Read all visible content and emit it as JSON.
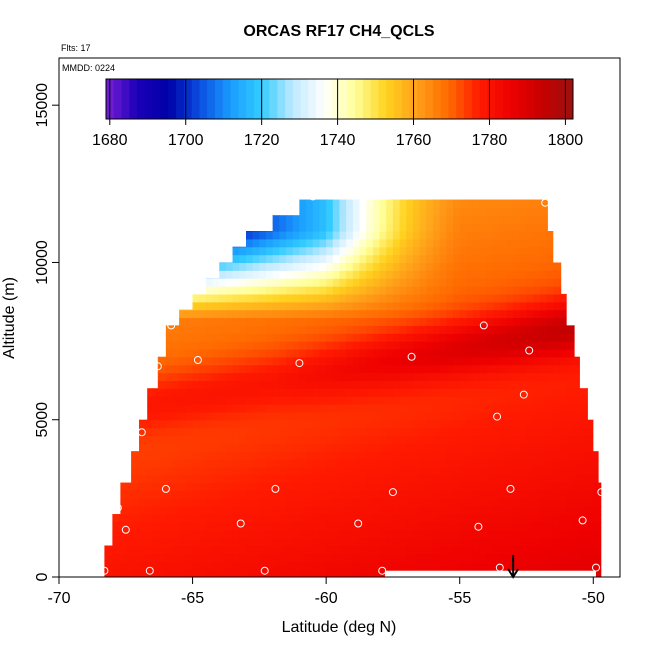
{
  "chart_data": {
    "type": "heatmap",
    "title": "ORCAS RF17 CH4_QCLS",
    "flights_label": "Flts: 17",
    "date_label": "MMDD: 0224",
    "xlabel": "Latitude (deg N)",
    "ylabel": "Altitude (m)",
    "xlim": [
      -70,
      -49
    ],
    "ylim": [
      0,
      16500
    ],
    "x_ticks": [
      -70,
      -65,
      -60,
      -55,
      -50
    ],
    "x_tick_labels": [
      "-70",
      "-65",
      "-60",
      "-55",
      "-50"
    ],
    "y_ticks": [
      0,
      5000,
      10000,
      15000
    ],
    "y_tick_labels": [
      "0",
      "5000",
      "10000",
      "15000"
    ],
    "colorbar": {
      "min": 1679,
      "max": 1802,
      "ticks": [
        1680,
        1700,
        1720,
        1740,
        1760,
        1780,
        1800
      ],
      "tick_labels": [
        "1680",
        "1700",
        "1720",
        "1740",
        "1760",
        "1780",
        "1800"
      ],
      "colors": [
        "#7a1fd6",
        "#1a00b8",
        "#0000a8",
        "#0a4de0",
        "#1a9cff",
        "#33ccff",
        "#bfe9ff",
        "#ffffff",
        "#ffff99",
        "#ffd21f",
        "#ff9f1a",
        "#ff6a00",
        "#ff1a00",
        "#ee0000",
        "#c80000",
        "#9a1010"
      ]
    },
    "field": {
      "lat_range": [
        -68.5,
        -49.7
      ],
      "alt_range": [
        0,
        12000
      ],
      "lat_step": 0.25,
      "alt_step": 250
    },
    "boundary": [
      [
        -68.3,
        0
      ],
      [
        -68.3,
        1000
      ],
      [
        -68.0,
        1000
      ],
      [
        -68.0,
        2000
      ],
      [
        -67.7,
        2000
      ],
      [
        -67.7,
        3000
      ],
      [
        -67.3,
        3000
      ],
      [
        -67.3,
        4000
      ],
      [
        -67.0,
        4000
      ],
      [
        -67.0,
        5000
      ],
      [
        -66.7,
        5000
      ],
      [
        -66.7,
        6000
      ],
      [
        -66.3,
        6000
      ],
      [
        -66.3,
        7000
      ],
      [
        -66.0,
        7000
      ],
      [
        -66.0,
        8000
      ],
      [
        -65.5,
        8000
      ],
      [
        -65.5,
        8500
      ],
      [
        -65.0,
        8500
      ],
      [
        -65.0,
        9000
      ],
      [
        -64.5,
        9000
      ],
      [
        -64.5,
        9500
      ],
      [
        -64.0,
        9500
      ],
      [
        -64.0,
        10000
      ],
      [
        -63.5,
        10000
      ],
      [
        -63.5,
        10500
      ],
      [
        -63.0,
        10500
      ],
      [
        -63.0,
        11000
      ],
      [
        -62.0,
        11000
      ],
      [
        -62.0,
        11500
      ],
      [
        -61.0,
        11500
      ],
      [
        -61.0,
        12000
      ],
      [
        -51.7,
        12000
      ],
      [
        -51.7,
        11000
      ],
      [
        -51.5,
        11000
      ],
      [
        -51.5,
        10000
      ],
      [
        -51.2,
        10000
      ],
      [
        -51.2,
        9000
      ],
      [
        -51.0,
        9000
      ],
      [
        -51.0,
        8000
      ],
      [
        -50.7,
        8000
      ],
      [
        -50.7,
        7000
      ],
      [
        -50.5,
        7000
      ],
      [
        -50.5,
        6000
      ],
      [
        -50.2,
        6000
      ],
      [
        -50.2,
        5000
      ],
      [
        -50.0,
        5000
      ],
      [
        -50.0,
        4000
      ],
      [
        -49.8,
        4000
      ],
      [
        -49.8,
        3000
      ],
      [
        -49.7,
        3000
      ],
      [
        -49.7,
        0
      ]
    ],
    "blank_region": {
      "lat": [
        -57.8,
        -49.9
      ],
      "alt": [
        0,
        200
      ]
    },
    "sample_points": [
      {
        "lat": -68.3,
        "alt": 200
      },
      {
        "lat": -66.6,
        "alt": 200
      },
      {
        "lat": -62.3,
        "alt": 200
      },
      {
        "lat": -57.9,
        "alt": 200
      },
      {
        "lat": -53.5,
        "alt": 300
      },
      {
        "lat": -49.9,
        "alt": 300
      },
      {
        "lat": -67.5,
        "alt": 1500
      },
      {
        "lat": -63.2,
        "alt": 1700
      },
      {
        "lat": -58.8,
        "alt": 1700
      },
      {
        "lat": -54.3,
        "alt": 1600
      },
      {
        "lat": -50.4,
        "alt": 1800
      },
      {
        "lat": -67.8,
        "alt": 2200
      },
      {
        "lat": -66.0,
        "alt": 2800
      },
      {
        "lat": -61.9,
        "alt": 2800
      },
      {
        "lat": -57.5,
        "alt": 2700
      },
      {
        "lat": -53.1,
        "alt": 2800
      },
      {
        "lat": -49.7,
        "alt": 2700
      },
      {
        "lat": -66.9,
        "alt": 4600
      },
      {
        "lat": -53.6,
        "alt": 5100
      },
      {
        "lat": -52.6,
        "alt": 5800
      },
      {
        "lat": -66.3,
        "alt": 6700
      },
      {
        "lat": -64.8,
        "alt": 6900
      },
      {
        "lat": -61.0,
        "alt": 6800
      },
      {
        "lat": -56.8,
        "alt": 7000
      },
      {
        "lat": -52.4,
        "alt": 7200
      },
      {
        "lat": -54.1,
        "alt": 8000
      },
      {
        "lat": -65.8,
        "alt": 8000
      },
      {
        "lat": -62.5,
        "alt": 11300
      },
      {
        "lat": -60.5,
        "alt": 12100
      },
      {
        "lat": -51.8,
        "alt": 11900
      }
    ],
    "arrow": {
      "lat": -53.0,
      "alt_from": 700,
      "alt_to": 0
    }
  }
}
